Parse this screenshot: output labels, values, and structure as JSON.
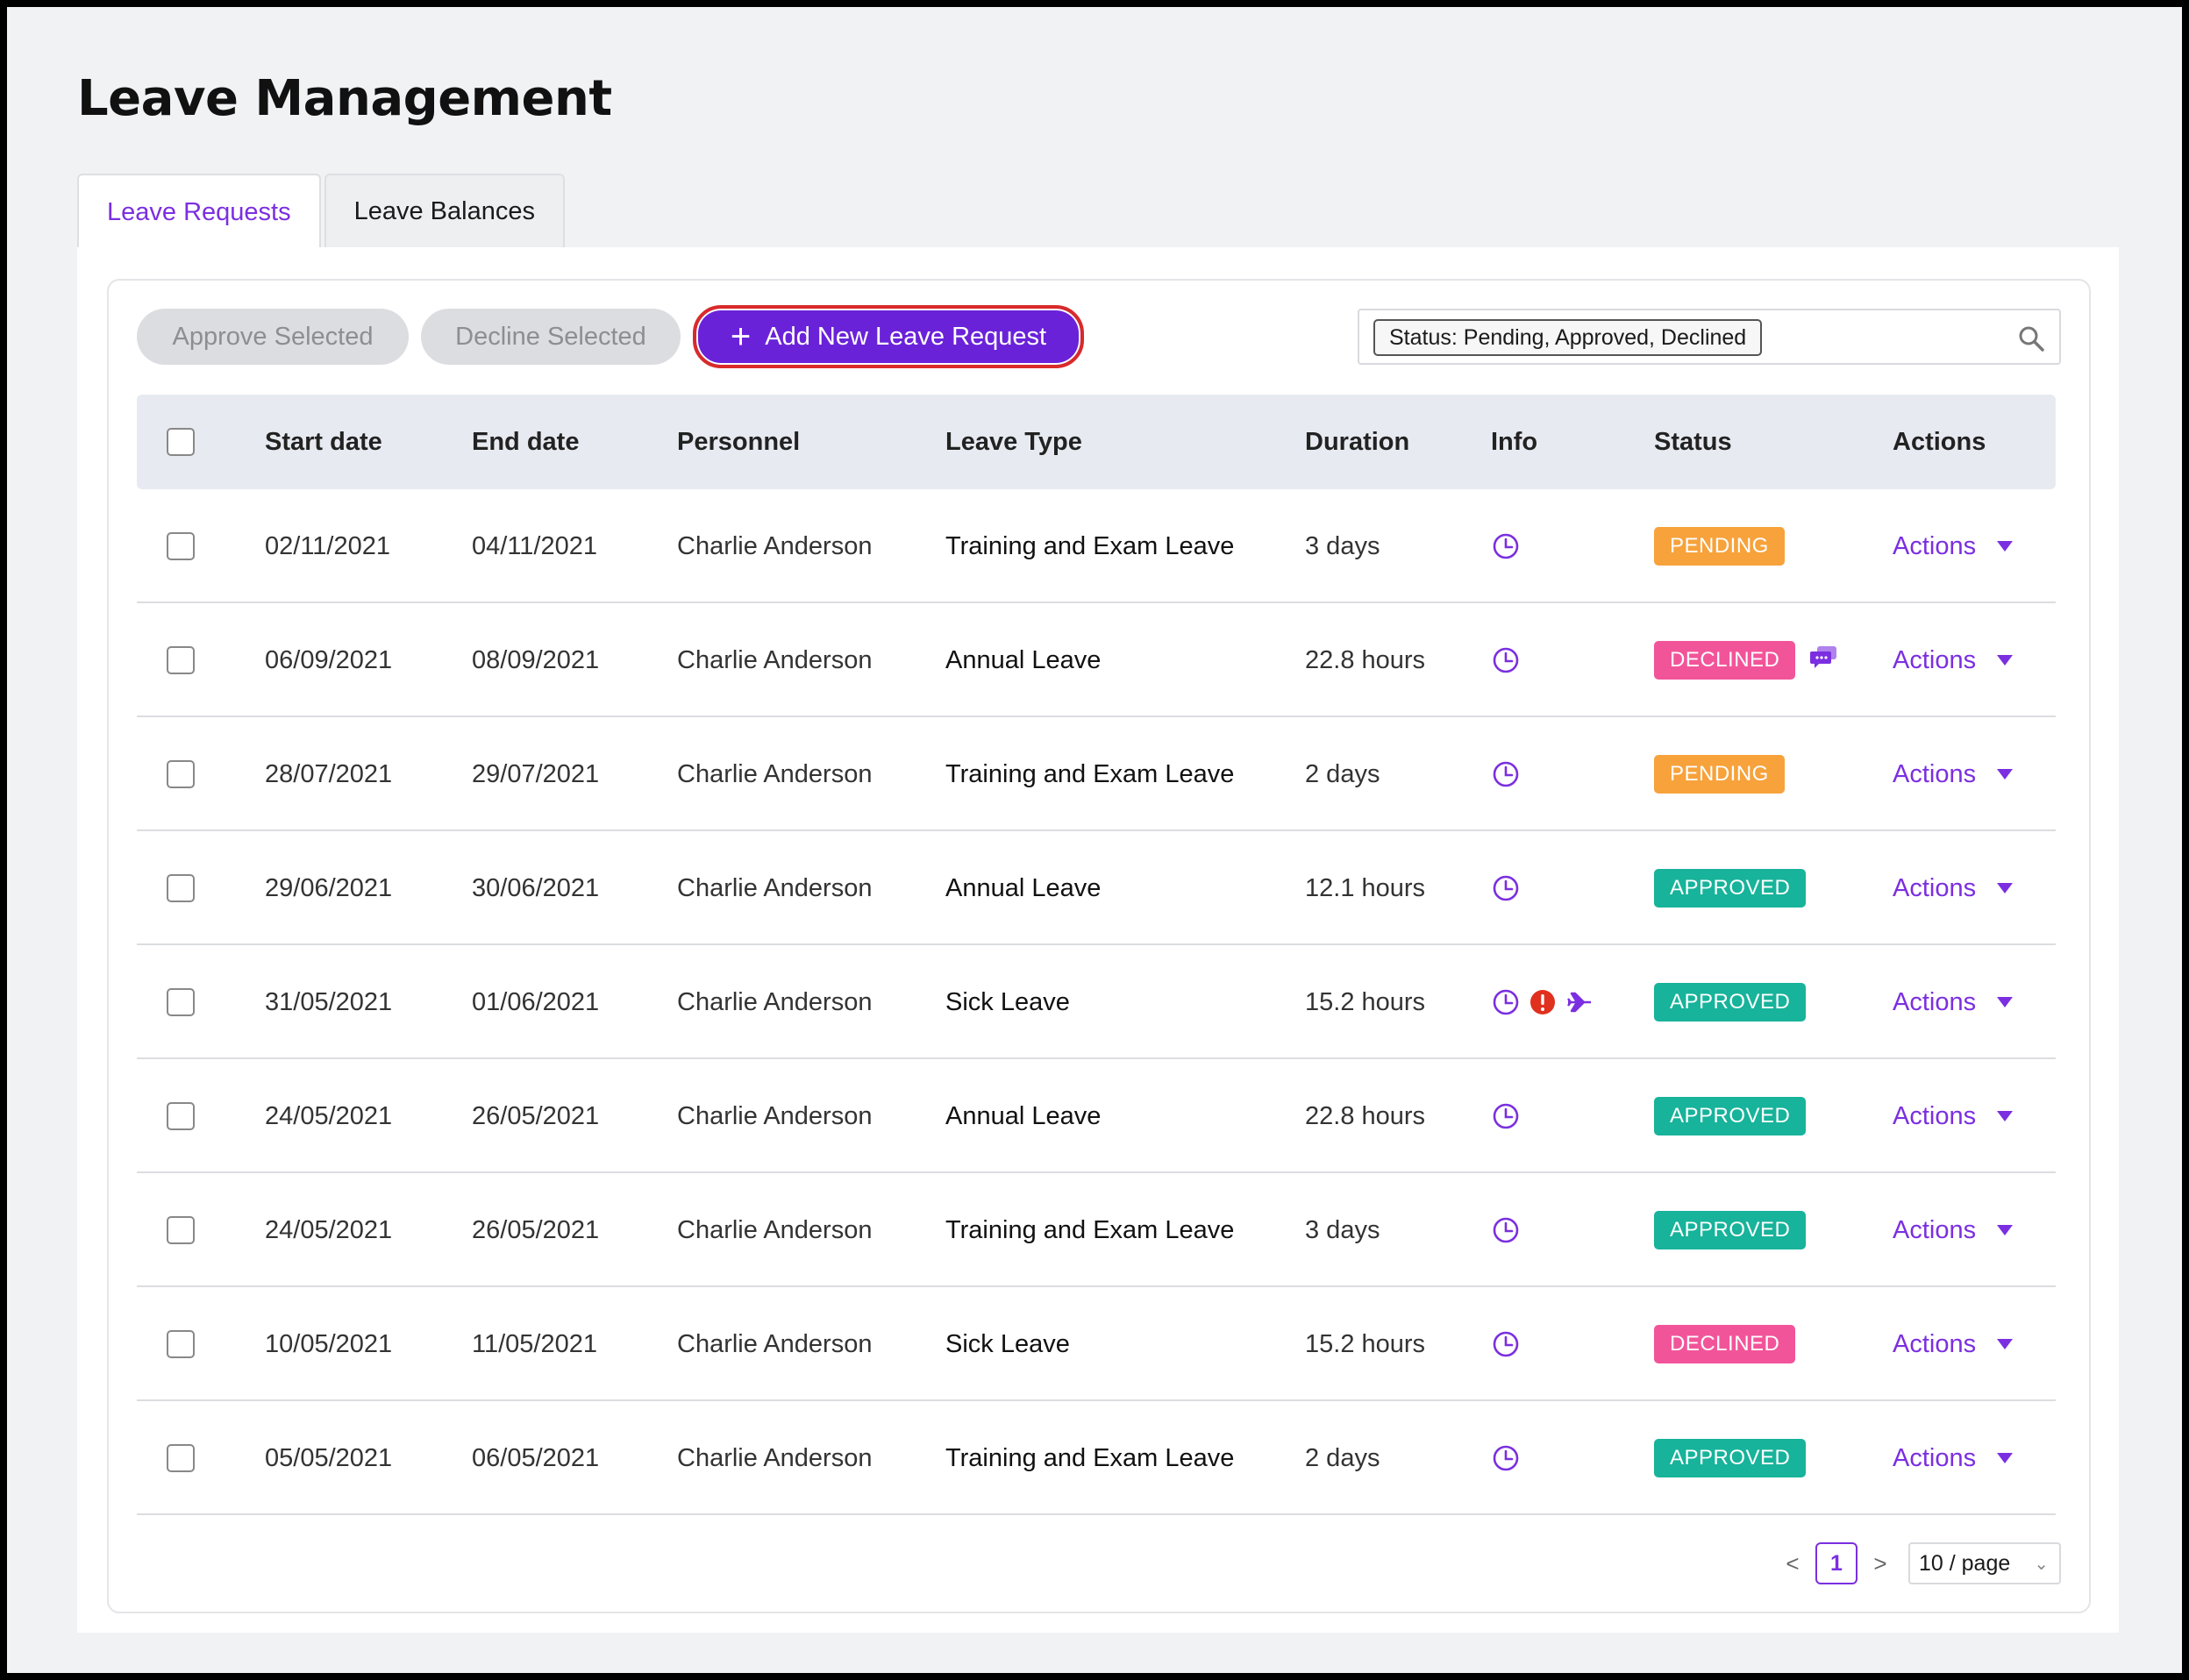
{
  "page": {
    "title": "Leave Management"
  },
  "tabs": [
    {
      "label": "Leave Requests",
      "active": true
    },
    {
      "label": "Leave Balances",
      "active": false
    }
  ],
  "toolbar": {
    "approve_label": "Approve Selected",
    "decline_label": "Decline Selected",
    "add_label": "Add New Leave Request",
    "filter_tag": "Status: Pending, Approved, Declined"
  },
  "table": {
    "headers": {
      "start": "Start date",
      "end": "End date",
      "personnel": "Personnel",
      "type": "Leave Type",
      "duration": "Duration",
      "info": "Info",
      "status": "Status",
      "actions": "Actions"
    },
    "rows": [
      {
        "start": "02/11/2021",
        "end": "04/11/2021",
        "personnel": "Charlie Anderson",
        "type": "Training and Exam Leave",
        "duration": "3 days",
        "info": [
          "clock-icon"
        ],
        "status": "PENDING",
        "comment": false,
        "actions": "Actions"
      },
      {
        "start": "06/09/2021",
        "end": "08/09/2021",
        "personnel": "Charlie Anderson",
        "type": "Annual Leave",
        "duration": "22.8 hours",
        "info": [
          "clock-icon"
        ],
        "status": "DECLINED",
        "comment": true,
        "actions": "Actions"
      },
      {
        "start": "28/07/2021",
        "end": "29/07/2021",
        "personnel": "Charlie Anderson",
        "type": "Training and Exam Leave",
        "duration": "2 days",
        "info": [
          "clock-icon"
        ],
        "status": "PENDING",
        "comment": false,
        "actions": "Actions"
      },
      {
        "start": "29/06/2021",
        "end": "30/06/2021",
        "personnel": "Charlie Anderson",
        "type": "Annual Leave",
        "duration": "12.1 hours",
        "info": [
          "clock-icon"
        ],
        "status": "APPROVED",
        "comment": false,
        "actions": "Actions"
      },
      {
        "start": "31/05/2021",
        "end": "01/06/2021",
        "personnel": "Charlie Anderson",
        "type": "Sick Leave",
        "duration": "15.2 hours",
        "info": [
          "clock-icon",
          "alert-icon",
          "plane-icon"
        ],
        "status": "APPROVED",
        "comment": false,
        "actions": "Actions"
      },
      {
        "start": "24/05/2021",
        "end": "26/05/2021",
        "personnel": "Charlie Anderson",
        "type": "Annual Leave",
        "duration": "22.8 hours",
        "info": [
          "clock-icon"
        ],
        "status": "APPROVED",
        "comment": false,
        "actions": "Actions"
      },
      {
        "start": "24/05/2021",
        "end": "26/05/2021",
        "personnel": "Charlie Anderson",
        "type": "Training and Exam Leave",
        "duration": "3 days",
        "info": [
          "clock-icon"
        ],
        "status": "APPROVED",
        "comment": false,
        "actions": "Actions"
      },
      {
        "start": "10/05/2021",
        "end": "11/05/2021",
        "personnel": "Charlie Anderson",
        "type": "Sick Leave",
        "duration": "15.2 hours",
        "info": [
          "clock-icon"
        ],
        "status": "DECLINED",
        "comment": false,
        "actions": "Actions"
      },
      {
        "start": "05/05/2021",
        "end": "06/05/2021",
        "personnel": "Charlie Anderson",
        "type": "Training and Exam Leave",
        "duration": "2 days",
        "info": [
          "clock-icon"
        ],
        "status": "APPROVED",
        "comment": false,
        "actions": "Actions"
      }
    ]
  },
  "pagination": {
    "prev": "<",
    "current": "1",
    "next": ">",
    "page_size": "10 / page"
  },
  "colors": {
    "accent": "#7b2fe0",
    "pending": "#f7a23b",
    "declined": "#f2549a",
    "approved": "#17b39a",
    "alert": "#e0301e"
  }
}
